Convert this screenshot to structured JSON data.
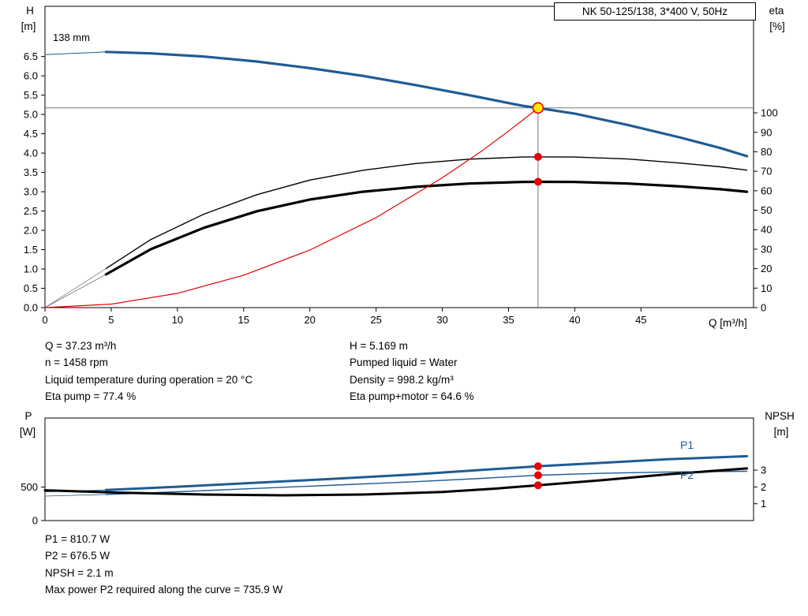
{
  "colors": {
    "curve_blue": "#1f5c94",
    "marker_red": "#e60000",
    "duty_yellow": "#ffe800",
    "duty_line_gray": "#666666"
  },
  "info_left": [
    "Q = 37.23 m³/h",
    "n = 1458 rpm",
    "Liquid temperature during operation = 20 °C",
    "Eta pump = 77.4 %"
  ],
  "info_right": [
    "H = 5.169 m",
    "Pumped liquid = Water",
    "Density = 998.2 kg/m³",
    "Eta pump+motor = 64.6 %"
  ],
  "footer": [
    "P1 = 810.7 W",
    "P2 = 676.5 W",
    "NPSH = 2.1 m",
    "Max power P2 required along the curve = 735.9 W"
  ],
  "chart_data": [
    {
      "type": "line",
      "title": "NK 50-125/138, 3*400 V, 50Hz",
      "impeller_label": "138 mm",
      "axis_titles": {
        "left_1": "H",
        "left_2": "[m]",
        "right_1": "eta",
        "right_2": "[%]",
        "x": "Q [m³/h]"
      },
      "xlim": [
        0,
        53.5
      ],
      "ylim_left": [
        0,
        7.8
      ],
      "ylim_right": [
        0,
        154.7
      ],
      "legend": "off",
      "grid": "off",
      "x_ticks": [
        [
          0,
          "0"
        ],
        [
          5,
          "5"
        ],
        [
          10,
          "10"
        ],
        [
          15,
          "15"
        ],
        [
          20,
          "20"
        ],
        [
          25,
          "25"
        ],
        [
          30,
          "30"
        ],
        [
          35,
          "35"
        ],
        [
          40,
          "40"
        ],
        [
          45,
          "45"
        ]
      ],
      "y_ticks_left": [
        [
          0,
          "0.0"
        ],
        [
          0.5,
          "0.5"
        ],
        [
          1,
          "1.0"
        ],
        [
          1.5,
          "1.5"
        ],
        [
          2,
          "2.0"
        ],
        [
          2.5,
          "2.5"
        ],
        [
          3,
          "3.0"
        ],
        [
          3.5,
          "3.5"
        ],
        [
          4,
          "4.0"
        ],
        [
          4.5,
          "4.5"
        ],
        [
          5,
          "5.0"
        ],
        [
          5.5,
          "5.5"
        ],
        [
          6,
          "6.0"
        ],
        [
          6.5,
          "6.5"
        ]
      ],
      "y_ticks_right": [
        [
          0,
          "0"
        ],
        [
          10,
          "10"
        ],
        [
          20,
          "20"
        ],
        [
          30,
          "30"
        ],
        [
          40,
          "40"
        ],
        [
          50,
          "50"
        ],
        [
          60,
          "60"
        ],
        [
          70,
          "70"
        ],
        [
          80,
          "80"
        ],
        [
          90,
          "90"
        ],
        [
          100,
          "100"
        ]
      ],
      "series": [
        {
          "name": "qh-curve-138mm",
          "axis": "left",
          "color": "#1f5c94",
          "width": 3.2,
          "points": [
            [
              4.6,
              6.62
            ],
            [
              8,
              6.58
            ],
            [
              12,
              6.5
            ],
            [
              16,
              6.37
            ],
            [
              20,
              6.2
            ],
            [
              24,
              6.0
            ],
            [
              28,
              5.76
            ],
            [
              32,
              5.5
            ],
            [
              36,
              5.23
            ],
            [
              37.23,
              5.169
            ],
            [
              40,
              5.02
            ],
            [
              44,
              4.73
            ],
            [
              48,
              4.4
            ],
            [
              51,
              4.13
            ],
            [
              53,
              3.92
            ]
          ]
        },
        {
          "name": "qh-min-flow-line",
          "axis": "left",
          "color": "#1f5c94",
          "width": 1,
          "points": [
            [
              0,
              6.55
            ],
            [
              4.6,
              6.62
            ]
          ]
        },
        {
          "name": "eta-pump-curve",
          "axis": "right",
          "color": "#000000",
          "width": 1.4,
          "points": [
            [
              4.6,
              20
            ],
            [
              8,
              35
            ],
            [
              12,
              48
            ],
            [
              16,
              58
            ],
            [
              20,
              65.5
            ],
            [
              24,
              70.5
            ],
            [
              28,
              74
            ],
            [
              32,
              76.2
            ],
            [
              36,
              77.3
            ],
            [
              37.23,
              77.4
            ],
            [
              40,
              77.3
            ],
            [
              44,
              76.3
            ],
            [
              48,
              74.2
            ],
            [
              51,
              72.3
            ],
            [
              53,
              70.6
            ]
          ]
        },
        {
          "name": "eta-pump-motor-curve",
          "axis": "right",
          "color": "#000000",
          "width": 3.2,
          "points": [
            [
              4.6,
              17
            ],
            [
              8,
              30
            ],
            [
              12,
              41
            ],
            [
              16,
              49.5
            ],
            [
              20,
              55.5
            ],
            [
              24,
              59.5
            ],
            [
              28,
              62
            ],
            [
              32,
              63.7
            ],
            [
              36,
              64.5
            ],
            [
              37.23,
              64.6
            ],
            [
              40,
              64.5
            ],
            [
              44,
              63.7
            ],
            [
              48,
              62.2
            ],
            [
              51,
              60.8
            ],
            [
              53,
              59.5
            ]
          ]
        },
        {
          "name": "eta-pump-leader",
          "axis": "right",
          "color": "#777777",
          "width": 0.8,
          "points": [
            [
              0,
              0
            ],
            [
              4.6,
              20
            ]
          ]
        },
        {
          "name": "eta-pump-motor-leader",
          "axis": "right",
          "color": "#777777",
          "width": 0.8,
          "points": [
            [
              0,
              0
            ],
            [
              4.6,
              17
            ]
          ]
        },
        {
          "name": "system-curve",
          "axis": "left",
          "color": "#e60000",
          "width": 1.2,
          "points": [
            [
              0,
              0
            ],
            [
              5,
              0.09
            ],
            [
              10,
              0.37
            ],
            [
              15,
              0.84
            ],
            [
              20,
              1.49
            ],
            [
              25,
              2.33
            ],
            [
              30,
              3.36
            ],
            [
              33,
              4.06
            ],
            [
              35,
              4.57
            ],
            [
              36.5,
              4.97
            ],
            [
              37.23,
              5.169
            ]
          ]
        }
      ],
      "duty": {
        "lines": {
          "q": 37.23,
          "h": 5.169
        },
        "points": [
          {
            "axis": "left",
            "q": 37.23,
            "v": 5.169,
            "style": "yellow"
          },
          {
            "axis": "right",
            "q": 37.23,
            "v": 77.4,
            "style": "red"
          },
          {
            "axis": "right",
            "q": 37.23,
            "v": 64.6,
            "style": "red"
          }
        ]
      }
    },
    {
      "type": "line",
      "axis_titles": {
        "left_1": "P",
        "left_2": "[W]",
        "right_1": "NPSH",
        "right_2": "[m]"
      },
      "curve_labels": {
        "p1": "P1",
        "p2": "P2"
      },
      "xlim": [
        0,
        53.5
      ],
      "ylim_left": [
        0,
        1530
      ],
      "ylim_right": [
        0,
        6.1
      ],
      "legend": "off",
      "grid": "off",
      "x_ticks": [],
      "y_ticks_left": [
        [
          0,
          "0"
        ],
        [
          500,
          "500"
        ]
      ],
      "y_ticks_right": [
        [
          1,
          "1"
        ],
        [
          2,
          "2"
        ],
        [
          3,
          "3"
        ]
      ],
      "series": [
        {
          "name": "p1-curve",
          "axis": "left",
          "color": "#1f5c94",
          "width": 3,
          "points": [
            [
              4.6,
              455
            ],
            [
              10,
              505
            ],
            [
              16,
              565
            ],
            [
              22,
              625
            ],
            [
              28,
              690
            ],
            [
              33,
              755
            ],
            [
              37.23,
              810.7
            ],
            [
              42,
              860
            ],
            [
              47,
              915
            ],
            [
              53,
              960
            ]
          ]
        },
        {
          "name": "p1-leader",
          "axis": "left",
          "color": "#1f5c94",
          "width": 1,
          "points": [
            [
              0,
              430
            ],
            [
              4.6,
              455
            ]
          ]
        },
        {
          "name": "p2-curve",
          "axis": "left",
          "color": "#1f5c94",
          "width": 1.4,
          "points": [
            [
              4.6,
              390
            ],
            [
              10,
              430
            ],
            [
              16,
              480
            ],
            [
              22,
              530
            ],
            [
              28,
              580
            ],
            [
              33,
              630
            ],
            [
              37.23,
              676.5
            ],
            [
              42,
              705
            ],
            [
              47,
              725
            ],
            [
              53,
              735.9
            ]
          ]
        },
        {
          "name": "p2-leader",
          "axis": "left",
          "color": "#1f5c94",
          "width": 0.8,
          "points": [
            [
              0,
              365
            ],
            [
              4.6,
              390
            ]
          ]
        },
        {
          "name": "npsh-curve",
          "axis": "right",
          "color": "#000000",
          "width": 3,
          "points": [
            [
              0,
              1.8
            ],
            [
              6,
              1.65
            ],
            [
              12,
              1.55
            ],
            [
              18,
              1.5
            ],
            [
              24,
              1.55
            ],
            [
              30,
              1.7
            ],
            [
              34,
              1.9
            ],
            [
              37.23,
              2.1
            ],
            [
              42,
              2.4
            ],
            [
              47,
              2.75
            ],
            [
              53,
              3.1
            ]
          ]
        }
      ],
      "duty": {
        "points": [
          {
            "axis": "left",
            "q": 37.23,
            "v": 810.7,
            "style": "red"
          },
          {
            "axis": "left",
            "q": 37.23,
            "v": 676.5,
            "style": "red"
          },
          {
            "axis": "right",
            "q": 37.23,
            "v": 2.1,
            "style": "red"
          }
        ]
      }
    }
  ]
}
